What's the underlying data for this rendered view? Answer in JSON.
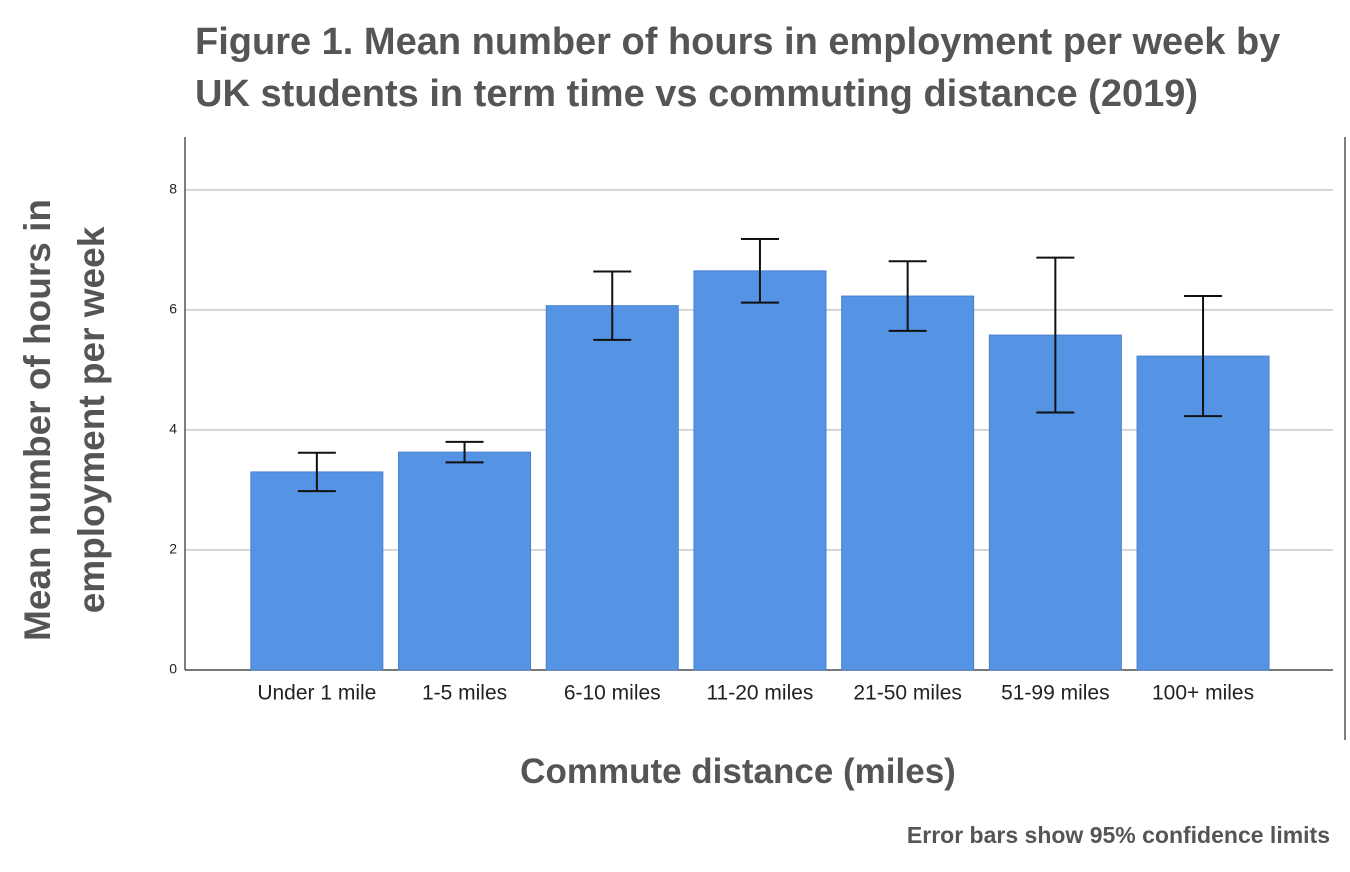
{
  "chart_data": {
    "type": "bar",
    "title": "Figure 1. Mean number of hours in employment per week by UK students in term time vs commuting distance (2019)",
    "x_label": "Commute distance (miles)",
    "y_label": "Mean number of hours in employment per week",
    "note": "Error bars show 95% confidence limits",
    "categories": [
      "Under 1 mile",
      "1-5 miles",
      "6-10 miles",
      "11-20 miles",
      "21-50 miles",
      "51-99 miles",
      "100+ miles"
    ],
    "values": [
      3.3,
      3.63,
      6.07,
      6.65,
      6.23,
      5.58,
      5.23
    ],
    "errors": [
      0.32,
      0.17,
      0.57,
      0.53,
      0.58,
      1.29,
      1.0
    ],
    "color": "#5594e4",
    "ylim": [
      0,
      8.88
    ],
    "yticks": [
      0,
      2,
      4,
      6,
      8
    ],
    "grid": true
  }
}
